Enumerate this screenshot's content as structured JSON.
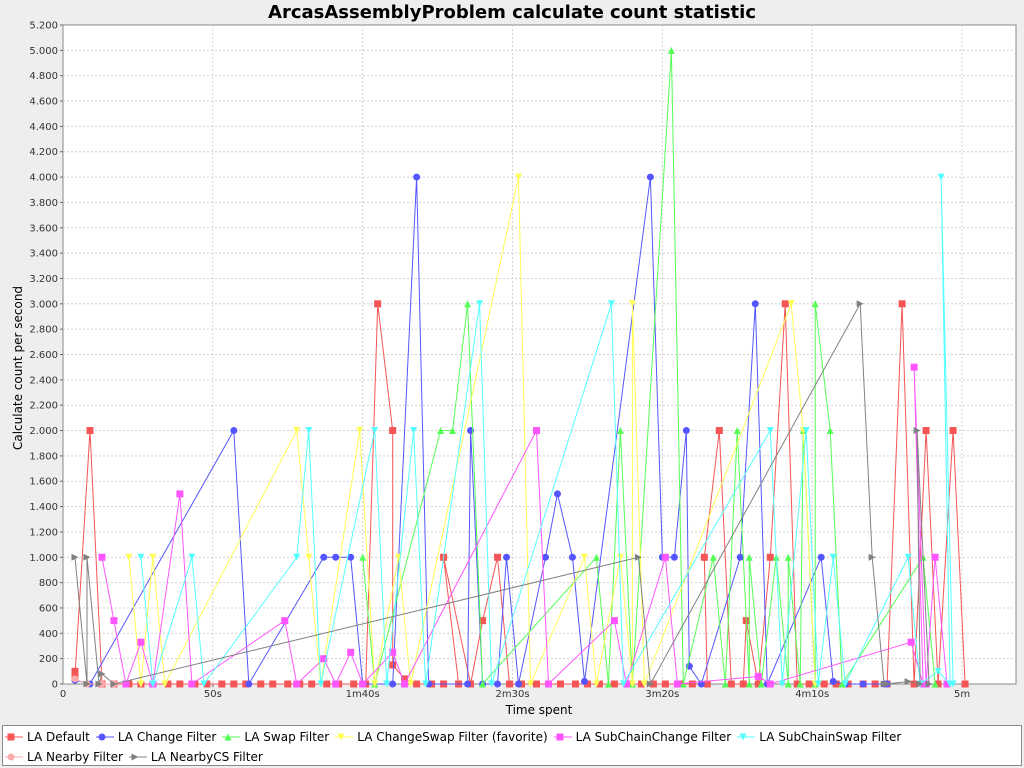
{
  "chart_data": {
    "type": "line",
    "title": "ArcasAssemblyProblem calculate count statistic",
    "xlabel": "Time spent",
    "ylabel": "Calculate count per second",
    "xlim": [
      0,
      318
    ],
    "ylim": [
      0,
      5200
    ],
    "x_tick_values": [
      50,
      100,
      150,
      200,
      250,
      300
    ],
    "x_tick_labels": [
      "50s",
      "1m40s",
      "2m30s",
      "3m20s",
      "4m10s",
      "5m"
    ],
    "y_tick_values": [
      0,
      200,
      400,
      600,
      800,
      1000,
      1200,
      1400,
      1600,
      1800,
      2000,
      2200,
      2400,
      2600,
      2800,
      3000,
      3200,
      3400,
      3600,
      3800,
      4000,
      4200,
      4400,
      4600,
      4800,
      5000,
      5200
    ],
    "y_tick_labels": [
      "0",
      "200",
      "400",
      "600",
      "800",
      "1.000",
      "1.200",
      "1.400",
      "1.600",
      "1.800",
      "2.000",
      "2.200",
      "2.400",
      "2.600",
      "2.800",
      "3.000",
      "3.200",
      "3.400",
      "3.600",
      "3.800",
      "4.000",
      "4.200",
      "4.400",
      "4.600",
      "4.800",
      "5.000",
      "5.200"
    ],
    "grid": true,
    "legend_position": "bottom",
    "series": [
      {
        "name": "LA Default",
        "color": "#f55555",
        "marker": "square",
        "points": [
          [
            4,
            100
          ],
          [
            4,
            70
          ],
          [
            9,
            2000
          ],
          [
            13,
            0
          ],
          [
            17,
            0
          ],
          [
            22,
            0
          ],
          [
            26,
            0
          ],
          [
            30,
            0
          ],
          [
            35,
            0
          ],
          [
            39,
            0
          ],
          [
            44,
            0
          ],
          [
            48,
            0
          ],
          [
            53,
            0
          ],
          [
            57,
            0
          ],
          [
            61,
            0
          ],
          [
            66,
            0
          ],
          [
            70,
            0
          ],
          [
            75,
            0
          ],
          [
            79,
            0
          ],
          [
            83,
            0
          ],
          [
            88,
            0
          ],
          [
            92,
            0
          ],
          [
            97,
            0
          ],
          [
            101,
            0
          ],
          [
            105,
            3000
          ],
          [
            110,
            2000
          ],
          [
            110,
            150
          ],
          [
            114,
            40
          ],
          [
            118,
            0
          ],
          [
            123,
            0
          ],
          [
            127,
            0
          ],
          [
            132,
            0
          ],
          [
            127,
            1000
          ],
          [
            136,
            0
          ],
          [
            140,
            500
          ],
          [
            145,
            1000
          ],
          [
            149,
            0
          ],
          [
            153,
            0
          ],
          [
            158,
            0
          ],
          [
            162,
            0
          ],
          [
            166,
            0
          ],
          [
            171,
            0
          ],
          [
            175,
            0
          ],
          [
            179,
            0
          ],
          [
            184,
            0
          ],
          [
            188,
            0
          ],
          [
            193,
            0
          ],
          [
            197,
            0
          ],
          [
            201,
            0
          ],
          [
            206,
            0
          ],
          [
            210,
            0
          ],
          [
            215,
            0
          ],
          [
            214,
            1000
          ],
          [
            219,
            2000
          ],
          [
            223,
            0
          ],
          [
            227,
            0
          ],
          [
            228,
            500
          ],
          [
            232,
            0
          ],
          [
            236,
            1000
          ],
          [
            241,
            3000
          ],
          [
            245,
            0
          ],
          [
            249,
            0
          ],
          [
            254,
            0
          ],
          [
            258,
            0
          ],
          [
            262,
            0
          ],
          [
            267,
            0
          ],
          [
            271,
            0
          ],
          [
            275,
            0
          ],
          [
            280,
            3000
          ],
          [
            284,
            0
          ],
          [
            288,
            2000
          ],
          [
            292,
            0
          ],
          [
            297,
            2000
          ],
          [
            301,
            0
          ]
        ]
      },
      {
        "name": "LA Change Filter",
        "color": "#5555ff",
        "marker": "circle",
        "points": [
          [
            4,
            30
          ],
          [
            9,
            0
          ],
          [
            57,
            2000
          ],
          [
            62,
            0
          ],
          [
            87,
            1000
          ],
          [
            91,
            1000
          ],
          [
            96,
            1000
          ],
          [
            100,
            0
          ],
          [
            110,
            0
          ],
          [
            118,
            4000
          ],
          [
            122,
            0
          ],
          [
            135,
            0
          ],
          [
            136,
            2000
          ],
          [
            140,
            0
          ],
          [
            145,
            0
          ],
          [
            148,
            1000
          ],
          [
            152,
            0
          ],
          [
            161,
            1000
          ],
          [
            165,
            1500
          ],
          [
            170,
            1000
          ],
          [
            174,
            20
          ],
          [
            196,
            4000
          ],
          [
            200,
            1000
          ],
          [
            204,
            1000
          ],
          [
            208,
            2000
          ],
          [
            209,
            140
          ],
          [
            213,
            0
          ],
          [
            226,
            1000
          ],
          [
            231,
            3000
          ],
          [
            235,
            0
          ],
          [
            253,
            1000
          ],
          [
            257,
            20
          ],
          [
            261,
            0
          ],
          [
            267,
            0
          ],
          [
            274,
            0
          ],
          [
            275,
            0
          ]
        ]
      },
      {
        "name": "LA Swap Filter",
        "color": "#55ff55",
        "marker": "triangle-up",
        "points": [
          [
            100,
            1000
          ],
          [
            104,
            0
          ],
          [
            126,
            2000
          ],
          [
            130,
            2000
          ],
          [
            135,
            3000
          ],
          [
            140,
            0
          ],
          [
            178,
            1000
          ],
          [
            182,
            0
          ],
          [
            186,
            2000
          ],
          [
            190,
            0
          ],
          [
            203,
            5000
          ],
          [
            207,
            0
          ],
          [
            217,
            1000
          ],
          [
            221,
            0
          ],
          [
            225,
            2000
          ],
          [
            229,
            0
          ],
          [
            229,
            1000
          ],
          [
            233,
            0
          ],
          [
            238,
            1000
          ],
          [
            242,
            0
          ],
          [
            242,
            1000
          ],
          [
            246,
            0
          ],
          [
            247,
            2000
          ],
          [
            251,
            0
          ],
          [
            251,
            3000
          ],
          [
            256,
            2000
          ],
          [
            260,
            0
          ],
          [
            287,
            1000
          ],
          [
            291,
            0
          ]
        ]
      },
      {
        "name": "LA ChangeSwap Filter (favorite)",
        "color": "#ffff55",
        "marker": "triangle-down",
        "points": [
          [
            22,
            1000
          ],
          [
            26,
            0
          ],
          [
            30,
            1000
          ],
          [
            34,
            0
          ],
          [
            78,
            2000
          ],
          [
            82,
            1000
          ],
          [
            86,
            0
          ],
          [
            99,
            2000
          ],
          [
            104,
            0
          ],
          [
            112,
            1000
          ],
          [
            116,
            0
          ],
          [
            152,
            4000
          ],
          [
            156,
            0
          ],
          [
            174,
            1000
          ],
          [
            178,
            0
          ],
          [
            186,
            1000
          ],
          [
            190,
            0
          ],
          [
            190,
            3000
          ],
          [
            194,
            0
          ],
          [
            243,
            3000
          ],
          [
            247,
            2000
          ],
          [
            251,
            0
          ]
        ]
      },
      {
        "name": "LA SubChainChange Filter",
        "color": "#ff55ff",
        "marker": "square",
        "points": [
          [
            13,
            1000
          ],
          [
            17,
            500
          ],
          [
            21,
            0
          ],
          [
            26,
            330
          ],
          [
            30,
            0
          ],
          [
            39,
            1500
          ],
          [
            43,
            0
          ],
          [
            74,
            500
          ],
          [
            78,
            0
          ],
          [
            87,
            200
          ],
          [
            91,
            0
          ],
          [
            96,
            250
          ],
          [
            100,
            0
          ],
          [
            110,
            250
          ],
          [
            114,
            0
          ],
          [
            158,
            2000
          ],
          [
            162,
            0
          ],
          [
            184,
            500
          ],
          [
            188,
            0
          ],
          [
            201,
            1000
          ],
          [
            205,
            0
          ],
          [
            232,
            60
          ],
          [
            236,
            0
          ],
          [
            283,
            330
          ],
          [
            287,
            0
          ],
          [
            284,
            2500
          ],
          [
            288,
            0
          ],
          [
            291,
            1000
          ],
          [
            295,
            0
          ]
        ]
      },
      {
        "name": "LA SubChainSwap Filter",
        "color": "#55ffff",
        "marker": "triangle-down",
        "points": [
          [
            26,
            1000
          ],
          [
            30,
            0
          ],
          [
            43,
            1000
          ],
          [
            47,
            0
          ],
          [
            78,
            1000
          ],
          [
            82,
            2000
          ],
          [
            86,
            0
          ],
          [
            104,
            2000
          ],
          [
            108,
            0
          ],
          [
            117,
            2000
          ],
          [
            121,
            0
          ],
          [
            139,
            3000
          ],
          [
            143,
            0
          ],
          [
            183,
            3000
          ],
          [
            187,
            0
          ],
          [
            236,
            2000
          ],
          [
            240,
            0
          ],
          [
            248,
            2000
          ],
          [
            252,
            0
          ],
          [
            257,
            1000
          ],
          [
            261,
            0
          ],
          [
            282,
            1000
          ],
          [
            286,
            0
          ],
          [
            292,
            100
          ],
          [
            296,
            0
          ],
          [
            293,
            4000
          ],
          [
            297,
            0
          ]
        ]
      },
      {
        "name": "LA Nearby Filter",
        "color": "#ffaaaa",
        "marker": "circle",
        "points": [
          [
            4,
            40
          ],
          [
            8,
            0
          ],
          [
            13,
            0
          ],
          [
            17,
            0
          ]
        ]
      },
      {
        "name": "LA NearbyCS Filter",
        "color": "#808080",
        "marker": "triangle-right",
        "points": [
          [
            4,
            1000
          ],
          [
            8,
            0
          ],
          [
            8,
            1000
          ],
          [
            12,
            0
          ],
          [
            13,
            80
          ],
          [
            17,
            0
          ],
          [
            192,
            1000
          ],
          [
            196,
            0
          ],
          [
            266,
            3000
          ],
          [
            270,
            1000
          ],
          [
            274,
            0
          ],
          [
            275,
            0
          ],
          [
            282,
            20
          ],
          [
            286,
            0
          ],
          [
            285,
            2000
          ],
          [
            289,
            0
          ]
        ]
      }
    ]
  }
}
